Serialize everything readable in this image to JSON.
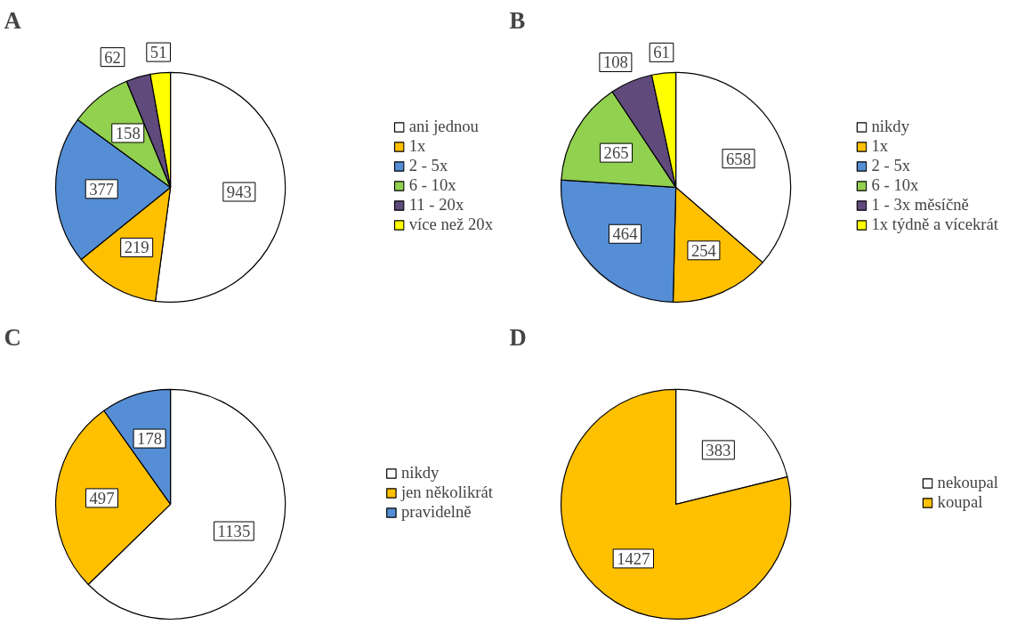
{
  "chart_data": [
    {
      "type": "pie",
      "title": "A",
      "categories": [
        "ani jednou",
        "1x",
        "2 - 5x",
        "6 - 10x",
        "11 - 20x",
        "více než 20x"
      ],
      "values": [
        943,
        219,
        377,
        158,
        62,
        51
      ],
      "colors": [
        "#ffffff",
        "#ffc000",
        "#558ed5",
        "#92d050",
        "#604a7b",
        "#ffff00"
      ],
      "data_labels": true,
      "legend": "right"
    },
    {
      "type": "pie",
      "title": "B",
      "categories": [
        "nikdy",
        "1x",
        "2 - 5x",
        "6 - 10x",
        "1 - 3x měsíčně",
        "1x týdně a vícekrát"
      ],
      "values": [
        658,
        254,
        464,
        265,
        108,
        61
      ],
      "colors": [
        "#ffffff",
        "#ffc000",
        "#558ed5",
        "#92d050",
        "#604a7b",
        "#ffff00"
      ],
      "data_labels": true,
      "legend": "right"
    },
    {
      "type": "pie",
      "title": "C",
      "categories": [
        "nikdy",
        "jen několikrát",
        "pravidelně"
      ],
      "values": [
        1135,
        497,
        178
      ],
      "colors": [
        "#ffffff",
        "#ffc000",
        "#558ed5"
      ],
      "data_labels": true,
      "legend": "right"
    },
    {
      "type": "pie",
      "title": "D",
      "categories": [
        "nekoupal",
        "koupal"
      ],
      "values": [
        383,
        1427
      ],
      "colors": [
        "#ffffff",
        "#ffc000"
      ],
      "data_labels": true,
      "legend": "right"
    }
  ]
}
